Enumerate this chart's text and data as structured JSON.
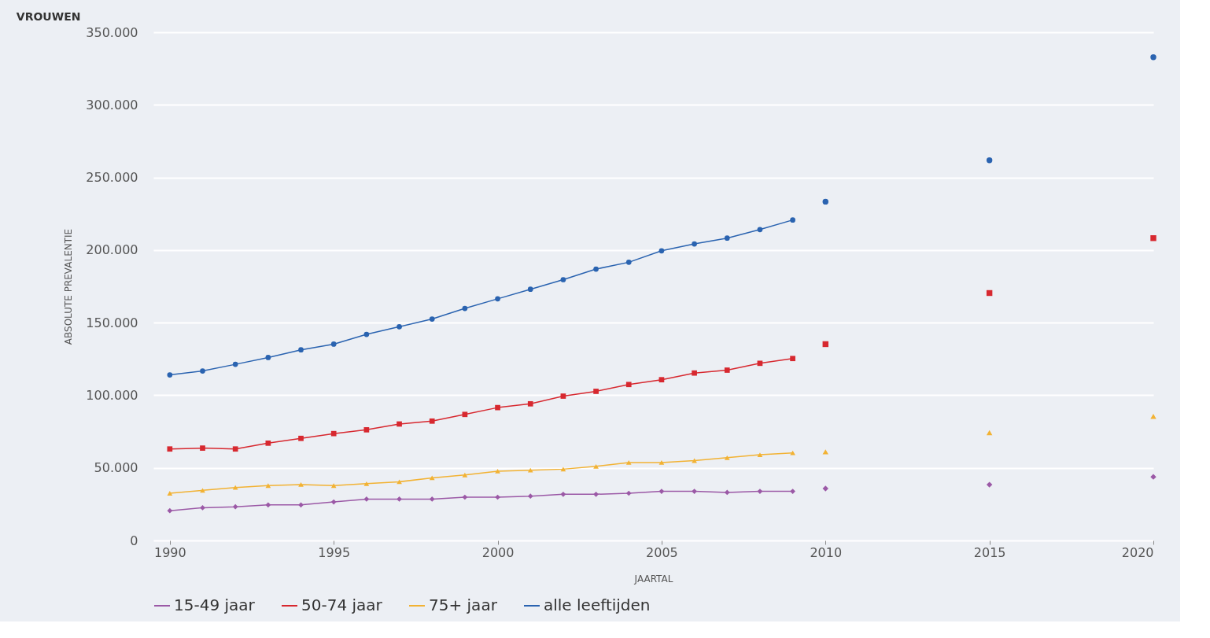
{
  "chart_data": {
    "type": "line",
    "title": "VROUWEN",
    "xlabel": "JAARTAL",
    "ylabel": "ABSOLUTE PREVALENTIE",
    "xlim": [
      1989.5,
      2020
    ],
    "xticks": [
      1990,
      1995,
      2000,
      2005,
      2010,
      2015,
      2020
    ],
    "ylim": [
      0,
      350000
    ],
    "yticks": [
      {
        "value": 0,
        "label": "0"
      },
      {
        "value": 50000,
        "label": "50.000"
      },
      {
        "value": 100000,
        "label": "100.000"
      },
      {
        "value": 150000,
        "label": "150.000"
      },
      {
        "value": 200000,
        "label": "200.000"
      },
      {
        "value": 250000,
        "label": "250.000"
      },
      {
        "value": 300000,
        "label": "300.000"
      },
      {
        "value": 350000,
        "label": "350.000"
      }
    ],
    "grid": "y",
    "legend": "bottom",
    "series": [
      {
        "name": "15-49 jaar",
        "color": "#9b59a6",
        "marker": "diamond",
        "x": [
          1990,
          1991,
          1992,
          1993,
          1994,
          1995,
          1996,
          1997,
          1998,
          1999,
          2000,
          2001,
          2002,
          2003,
          2004,
          2005,
          2006,
          2007,
          2008,
          2009
        ],
        "values": [
          20500,
          22500,
          23200,
          24500,
          24500,
          26500,
          28500,
          28500,
          28500,
          29800,
          29800,
          30500,
          31800,
          31800,
          32500,
          33800,
          33800,
          33100,
          33800,
          33800
        ]
      },
      {
        "name": "50-74 jaar",
        "color": "#d7282f",
        "marker": "square",
        "x": [
          1990,
          1991,
          1992,
          1993,
          1994,
          1995,
          1996,
          1997,
          1998,
          1999,
          2000,
          2001,
          2002,
          2003,
          2004,
          2005,
          2006,
          2007,
          2008,
          2009
        ],
        "values": [
          63000,
          63600,
          63000,
          67000,
          70300,
          73600,
          76200,
          80200,
          82200,
          86800,
          91500,
          94100,
          99400,
          102700,
          107400,
          110700,
          115300,
          117300,
          122000,
          125300
        ]
      },
      {
        "name": "75+ jaar",
        "color": "#f2b233",
        "marker": "triangle",
        "x": [
          1990,
          1991,
          1992,
          1993,
          1994,
          1995,
          1996,
          1997,
          1998,
          1999,
          2000,
          2001,
          2002,
          2003,
          2004,
          2005,
          2006,
          2007,
          2008,
          2009
        ],
        "values": [
          32500,
          34500,
          36500,
          37800,
          38500,
          37800,
          39100,
          40400,
          43100,
          45100,
          47700,
          48400,
          49100,
          51000,
          53700,
          53700,
          55000,
          57000,
          59000,
          60300
        ]
      },
      {
        "name": "alle leeftijden",
        "color": "#2a63b0",
        "marker": "circle",
        "x": [
          1990,
          1991,
          1992,
          1993,
          1994,
          1995,
          1996,
          1997,
          1998,
          1999,
          2000,
          2001,
          2002,
          2003,
          2004,
          2005,
          2006,
          2007,
          2008,
          2009
        ],
        "values": [
          114000,
          116700,
          121300,
          126000,
          131300,
          135200,
          141900,
          147200,
          152500,
          159800,
          166400,
          173000,
          179600,
          186900,
          191600,
          199500,
          204200,
          208200,
          214100,
          220700
        ]
      },
      {
        "type": "scatter",
        "color": "#9b59a6",
        "marker": "diamond",
        "x": [
          2010,
          2015,
          2020
        ],
        "values": [
          35800,
          38400,
          43800
        ]
      },
      {
        "type": "scatter",
        "color": "#d7282f",
        "marker": "square",
        "x": [
          2010,
          2015,
          2020
        ],
        "values": [
          135200,
          170400,
          208200
        ]
      },
      {
        "type": "scatter",
        "color": "#f2b233",
        "marker": "triangle",
        "x": [
          2010,
          2015,
          2020
        ],
        "values": [
          61000,
          74200,
          85500
        ]
      },
      {
        "type": "scatter",
        "color": "#2a63b0",
        "marker": "circle",
        "x": [
          2010,
          2015,
          2020
        ],
        "values": [
          233300,
          261800,
          332800
        ]
      }
    ]
  }
}
